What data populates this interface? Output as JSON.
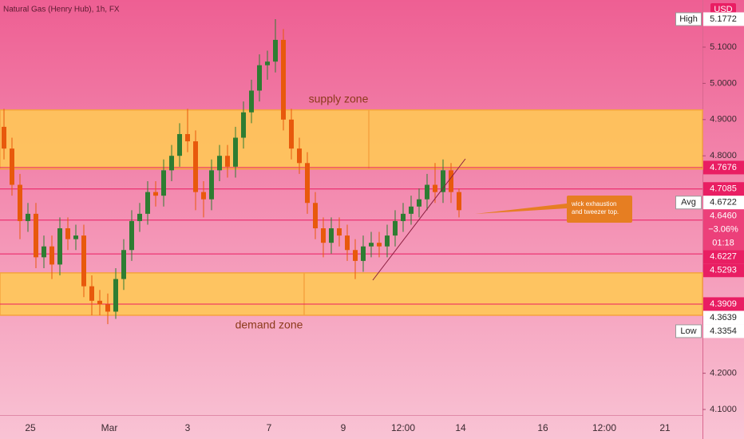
{
  "chart_data": {
    "type": "candlestick",
    "title": "Natural Gas (Henry Hub), 1h, FX",
    "currency": "USD",
    "up_color": "#2e7d32",
    "down_color": "#e8590c",
    "x": [
      1,
      3,
      5,
      7,
      9,
      11,
      13,
      15,
      17,
      19,
      21,
      23,
      25,
      27,
      29,
      31,
      33,
      35,
      37,
      39,
      41,
      43,
      45,
      47,
      49,
      51,
      53,
      55,
      57,
      59,
      61,
      63,
      65,
      67,
      69,
      71,
      73,
      75,
      77,
      79,
      81,
      83,
      85,
      87,
      89,
      91,
      93,
      95,
      97,
      99,
      101,
      103,
      105,
      107,
      109,
      111,
      113,
      115
    ],
    "open": [
      4.88,
      4.82,
      4.72,
      4.62,
      4.64,
      4.52,
      4.55,
      4.5,
      4.6,
      4.57,
      4.58,
      4.44,
      4.4,
      4.39,
      4.37,
      4.46,
      4.54,
      4.62,
      4.64,
      4.7,
      4.69,
      4.76,
      4.8,
      4.86,
      4.84,
      4.7,
      4.68,
      4.76,
      4.8,
      4.77,
      4.85,
      4.92,
      4.98,
      5.05,
      5.06,
      5.12,
      4.9,
      4.82,
      4.78,
      4.67,
      4.6,
      4.56,
      4.6,
      4.58,
      4.54,
      4.51,
      4.55,
      4.56,
      4.55,
      4.58,
      4.62,
      4.64,
      4.66,
      4.68,
      4.72,
      4.7,
      4.76,
      4.7
    ],
    "high": [
      4.93,
      4.85,
      4.75,
      4.67,
      4.67,
      4.58,
      4.58,
      4.63,
      4.63,
      4.61,
      4.61,
      4.47,
      4.43,
      4.42,
      4.49,
      4.57,
      4.65,
      4.67,
      4.73,
      4.73,
      4.79,
      4.83,
      4.89,
      4.93,
      4.87,
      4.73,
      4.79,
      4.83,
      4.83,
      4.88,
      4.95,
      5.01,
      5.08,
      5.09,
      5.1772,
      5.15,
      4.93,
      4.85,
      4.81,
      4.7,
      4.63,
      4.63,
      4.63,
      4.61,
      4.57,
      4.58,
      4.59,
      4.59,
      4.61,
      4.65,
      4.67,
      4.69,
      4.71,
      4.75,
      4.78,
      4.79,
      4.78,
      4.71
    ],
    "low": [
      4.79,
      4.69,
      4.57,
      4.59,
      4.49,
      4.49,
      4.46,
      4.47,
      4.54,
      4.54,
      4.41,
      4.36,
      4.36,
      4.3354,
      4.35,
      4.43,
      4.51,
      4.59,
      4.61,
      4.66,
      4.66,
      4.73,
      4.77,
      4.81,
      4.65,
      4.63,
      4.65,
      4.73,
      4.74,
      4.74,
      4.82,
      4.89,
      4.95,
      5.01,
      5.03,
      4.87,
      4.79,
      4.75,
      4.64,
      4.57,
      4.52,
      4.53,
      4.55,
      4.51,
      4.46,
      4.48,
      4.52,
      4.52,
      4.52,
      4.55,
      4.59,
      4.61,
      4.63,
      4.65,
      4.67,
      4.67,
      4.67,
      4.63
    ],
    "close": [
      4.82,
      4.72,
      4.62,
      4.64,
      4.52,
      4.55,
      4.5,
      4.6,
      4.57,
      4.58,
      4.44,
      4.4,
      4.39,
      4.37,
      4.46,
      4.54,
      4.62,
      4.64,
      4.7,
      4.69,
      4.76,
      4.8,
      4.86,
      4.84,
      4.7,
      4.68,
      4.76,
      4.8,
      4.77,
      4.85,
      4.92,
      4.98,
      5.05,
      5.06,
      5.12,
      4.9,
      4.82,
      4.78,
      4.67,
      4.6,
      4.56,
      4.6,
      4.58,
      4.54,
      4.51,
      4.55,
      4.56,
      4.55,
      4.58,
      4.62,
      4.64,
      4.66,
      4.68,
      4.72,
      4.7,
      4.76,
      4.7,
      4.65
    ],
    "xlim": [
      0,
      176
    ],
    "xticks": [
      {
        "value": 7.6,
        "label": "25"
      },
      {
        "value": 27.4,
        "label": "Mar"
      },
      {
        "value": 47,
        "label": "3"
      },
      {
        "value": 67.4,
        "label": "7"
      },
      {
        "value": 86,
        "label": "9"
      },
      {
        "value": 101,
        "label": "12:00"
      },
      {
        "value": 115.4,
        "label": "14"
      },
      {
        "value": 136,
        "label": "16"
      },
      {
        "value": 151.4,
        "label": "12:00"
      },
      {
        "value": 166.6,
        "label": "21"
      }
    ],
    "ylim": [
      4.0846,
      5.23
    ],
    "yticks": [
      {
        "value": 5.1,
        "label": "5.1000"
      },
      {
        "value": 5.0,
        "label": "5.0000"
      },
      {
        "value": 4.9,
        "label": "4.9000"
      },
      {
        "value": 4.8,
        "label": "4.8000"
      },
      {
        "value": 4.2,
        "label": "4.2000"
      },
      {
        "value": 4.1,
        "label": "4.1000"
      }
    ],
    "zones": [
      {
        "name": "supply zone",
        "from": 4.7636,
        "to": 4.9266
      },
      {
        "name": "demand zone",
        "from": 4.36,
        "to": 4.477
      }
    ],
    "levels": [
      4.7676,
      4.7085,
      4.6227,
      4.5293,
      4.3909
    ],
    "extra_price": 4.3639,
    "high_marker": {
      "label": "High",
      "value": 5.1772
    },
    "low_marker": {
      "label": "Low",
      "value": 4.3354
    },
    "avg_marker": {
      "label": "Avg",
      "value": 4.6722
    },
    "last": {
      "value": 4.646,
      "label": "4.6460",
      "change": "−3.06%",
      "countdown": "01:18"
    },
    "annotation": "wick exhaustion and tweezer top."
  }
}
